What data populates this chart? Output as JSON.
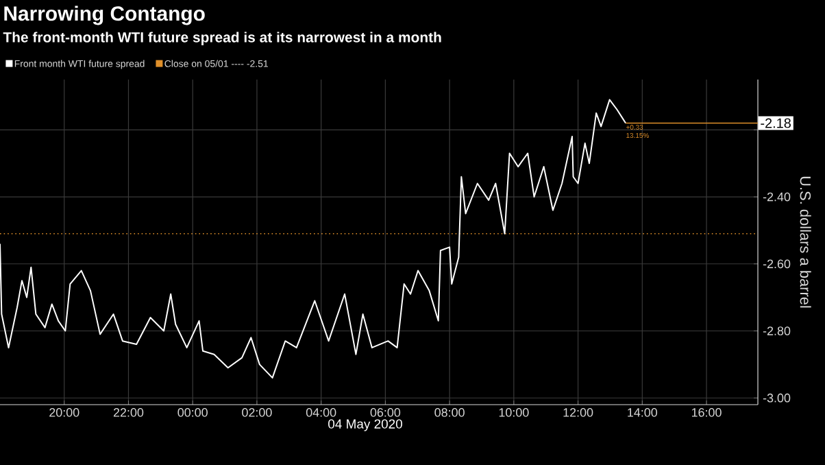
{
  "chart_data": {
    "type": "line",
    "title": "Narrowing Contango",
    "subtitle": "The front-month WTI future spread is at its narrowest in a month",
    "xlabel": "04 May 2020",
    "ylabel": "U.S. dollars a barrel",
    "series": [
      {
        "name": "Front month WTI future spread",
        "color": "#ffffff",
        "x": [
          "2020-05-03T18:00",
          "2020-05-03T18:03",
          "2020-05-03T18:16",
          "2020-05-03T18:32",
          "2020-05-03T18:41",
          "2020-05-03T18:50",
          "2020-05-03T18:58",
          "2020-05-03T19:07",
          "2020-05-03T19:24",
          "2020-05-03T19:37",
          "2020-05-03T19:49",
          "2020-05-03T20:02",
          "2020-05-03T20:11",
          "2020-05-03T20:32",
          "2020-05-03T20:49",
          "2020-05-03T21:07",
          "2020-05-03T21:32",
          "2020-05-03T21:49",
          "2020-05-03T22:15",
          "2020-05-03T22:41",
          "2020-05-03T23:06",
          "2020-05-03T23:19",
          "2020-05-03T23:28",
          "2020-05-03T23:49",
          "2020-05-04T00:12",
          "2020-05-04T00:19",
          "2020-05-04T00:40",
          "2020-05-04T01:06",
          "2020-05-04T01:32",
          "2020-05-04T01:49",
          "2020-05-04T02:05",
          "2020-05-04T02:29",
          "2020-05-04T02:53",
          "2020-05-04T03:14",
          "2020-05-04T03:48",
          "2020-05-04T04:14",
          "2020-05-04T04:44",
          "2020-05-04T05:05",
          "2020-05-04T05:18",
          "2020-05-04T05:35",
          "2020-05-04T06:05",
          "2020-05-04T06:22",
          "2020-05-04T06:35",
          "2020-05-04T06:47",
          "2020-05-04T07:01",
          "2020-05-04T07:22",
          "2020-05-04T07:39",
          "2020-05-04T07:43",
          "2020-05-04T08:00",
          "2020-05-04T08:04",
          "2020-05-04T08:17",
          "2020-05-04T08:22",
          "2020-05-04T08:30",
          "2020-05-04T08:52",
          "2020-05-04T09:13",
          "2020-05-04T09:26",
          "2020-05-04T09:43",
          "2020-05-04T09:52",
          "2020-05-04T10:08",
          "2020-05-04T10:26",
          "2020-05-04T10:38",
          "2020-05-04T10:56",
          "2020-05-04T11:13",
          "2020-05-04T11:30",
          "2020-05-04T11:49",
          "2020-05-04T11:51",
          "2020-05-04T12:00",
          "2020-05-04T12:13",
          "2020-05-04T12:21",
          "2020-05-04T12:34",
          "2020-05-04T12:43",
          "2020-05-04T12:59",
          "2020-05-04T13:13",
          "2020-05-04T13:25",
          "2020-05-04T13:29"
        ],
        "values": [
          -2.54,
          -2.75,
          -2.85,
          -2.73,
          -2.65,
          -2.7,
          -2.61,
          -2.75,
          -2.79,
          -2.72,
          -2.77,
          -2.8,
          -2.66,
          -2.62,
          -2.68,
          -2.81,
          -2.75,
          -2.83,
          -2.84,
          -2.76,
          -2.8,
          -2.69,
          -2.78,
          -2.85,
          -2.77,
          -2.86,
          -2.87,
          -2.91,
          -2.88,
          -2.82,
          -2.9,
          -2.94,
          -2.83,
          -2.85,
          -2.71,
          -2.83,
          -2.69,
          -2.87,
          -2.75,
          -2.85,
          -2.83,
          -2.85,
          -2.66,
          -2.69,
          -2.62,
          -2.68,
          -2.77,
          -2.56,
          -2.55,
          -2.66,
          -2.58,
          -2.34,
          -2.45,
          -2.36,
          -2.41,
          -2.36,
          -2.51,
          -2.27,
          -2.31,
          -2.27,
          -2.4,
          -2.31,
          -2.44,
          -2.36,
          -2.22,
          -2.34,
          -2.36,
          -2.24,
          -2.3,
          -2.15,
          -2.19,
          -2.11,
          -2.14,
          -2.17,
          -2.18
        ]
      }
    ],
    "xlim": [
      "2020-05-03T18:00",
      "2020-05-04T17:36"
    ],
    "xticks": [
      {
        "value": "2020-05-03T20:00",
        "label": "20:00"
      },
      {
        "value": "2020-05-03T22:00",
        "label": "22:00"
      },
      {
        "value": "2020-05-04T00:00",
        "label": "00:00"
      },
      {
        "value": "2020-05-04T02:00",
        "label": "02:00"
      },
      {
        "value": "2020-05-04T04:00",
        "label": "04:00"
      },
      {
        "value": "2020-05-04T06:00",
        "label": "06:00"
      },
      {
        "value": "2020-05-04T08:00",
        "label": "08:00"
      },
      {
        "value": "2020-05-04T10:00",
        "label": "10:00"
      },
      {
        "value": "2020-05-04T12:00",
        "label": "12:00"
      },
      {
        "value": "2020-05-04T14:00",
        "label": "14:00"
      },
      {
        "value": "2020-05-04T16:00",
        "label": "16:00"
      }
    ],
    "ylim": [
      -3.02,
      -2.05
    ],
    "yticks": [
      {
        "value": -3.0,
        "label": "-3.00"
      },
      {
        "value": -2.8,
        "label": "-2.80"
      },
      {
        "value": -2.6,
        "label": "-2.60"
      },
      {
        "value": -2.4,
        "label": "-2.40"
      },
      {
        "value": -2.2,
        "label": null
      }
    ],
    "ref_lines": [
      {
        "axis": "y",
        "value": -2.51,
        "label": "Close on 05/01 ---- -2.51",
        "color": "#e0902a",
        "line_style": "dotted"
      }
    ],
    "annotations": [
      {
        "text": "-2.18",
        "y": -2.18
      },
      {
        "text": "+0.33",
        "x": "2020-05-04T13:29",
        "y": -2.18
      },
      {
        "text": "13.15%",
        "x": "2020-05-04T13:29",
        "y": -2.18
      }
    ],
    "grid": true,
    "legend": "top left",
    "marker": "none",
    "line_style": "solid"
  }
}
